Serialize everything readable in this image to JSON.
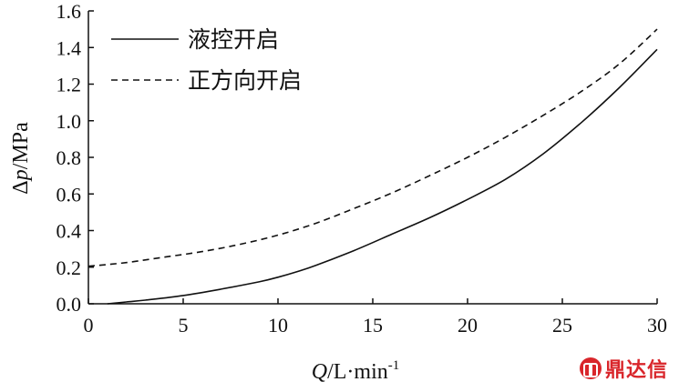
{
  "chart_data": {
    "type": "line",
    "xlabel_italic": "Q",
    "xlabel_rest": "/L·min",
    "xlabel_sup": "-1",
    "ylabel_prefix": "Δ",
    "ylabel_italic": "p",
    "ylabel_rest": "/MPa",
    "xlim": [
      0,
      30
    ],
    "ylim": [
      0,
      1.6
    ],
    "xticks": [
      "0",
      "5",
      "10",
      "15",
      "20",
      "25",
      "30"
    ],
    "yticks": [
      "0.0",
      "0.2",
      "0.4",
      "0.6",
      "0.8",
      "1.0",
      "1.2",
      "1.4",
      "1.6"
    ],
    "legend_position": "top-left",
    "grid": false,
    "series": [
      {
        "name": "液控开启",
        "style": "solid",
        "color": "#111111",
        "points": [
          [
            1,
            0.0
          ],
          [
            2,
            0.01
          ],
          [
            3,
            0.02
          ],
          [
            5,
            0.045
          ],
          [
            7,
            0.08
          ],
          [
            9,
            0.12
          ],
          [
            10,
            0.145
          ],
          [
            11,
            0.175
          ],
          [
            12,
            0.21
          ],
          [
            14,
            0.29
          ],
          [
            16,
            0.38
          ],
          [
            18,
            0.47
          ],
          [
            20,
            0.57
          ],
          [
            22,
            0.68
          ],
          [
            24,
            0.82
          ],
          [
            26,
            0.99
          ],
          [
            28,
            1.18
          ],
          [
            30,
            1.39
          ]
        ]
      },
      {
        "name": "正方向开启",
        "style": "dashed",
        "color": "#111111",
        "points": [
          [
            0,
            0.205
          ],
          [
            2,
            0.225
          ],
          [
            4,
            0.255
          ],
          [
            6,
            0.285
          ],
          [
            8,
            0.325
          ],
          [
            10,
            0.375
          ],
          [
            12,
            0.44
          ],
          [
            14,
            0.52
          ],
          [
            16,
            0.605
          ],
          [
            18,
            0.7
          ],
          [
            20,
            0.8
          ],
          [
            22,
            0.91
          ],
          [
            24,
            1.03
          ],
          [
            26,
            1.16
          ],
          [
            28,
            1.31
          ],
          [
            30,
            1.5
          ]
        ]
      }
    ]
  },
  "watermark": {
    "icon": "logo-icon",
    "text": "鼎达信",
    "color": "#d9262b"
  }
}
